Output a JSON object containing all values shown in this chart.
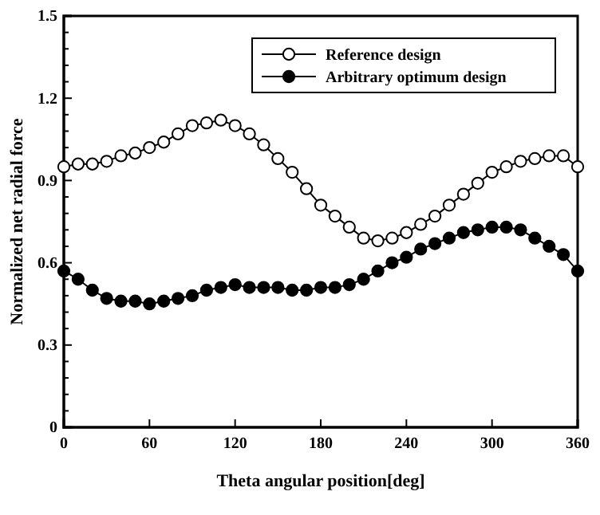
{
  "chart_data": {
    "type": "line",
    "xlabel": "Theta angular position[deg]",
    "ylabel": "Normalized net radial force",
    "x": [
      0,
      10,
      20,
      30,
      40,
      50,
      60,
      70,
      80,
      90,
      100,
      110,
      120,
      130,
      140,
      150,
      160,
      170,
      180,
      190,
      200,
      210,
      220,
      230,
      240,
      250,
      260,
      270,
      280,
      290,
      300,
      310,
      320,
      330,
      340,
      350,
      360
    ],
    "series": [
      {
        "name": "Reference design",
        "color": "#ffffff",
        "marker": "circle",
        "values": [
          0.95,
          0.96,
          0.96,
          0.97,
          0.99,
          1.0,
          1.02,
          1.04,
          1.07,
          1.1,
          1.11,
          1.12,
          1.1,
          1.07,
          1.03,
          0.98,
          0.93,
          0.87,
          0.81,
          0.77,
          0.73,
          0.69,
          0.68,
          0.69,
          0.71,
          0.74,
          0.77,
          0.81,
          0.85,
          0.89,
          0.93,
          0.95,
          0.97,
          0.98,
          0.99,
          0.99,
          0.95
        ]
      },
      {
        "name": "Arbitrary optimum design",
        "color": "#000000",
        "marker": "circle",
        "values": [
          0.57,
          0.54,
          0.5,
          0.47,
          0.46,
          0.46,
          0.45,
          0.46,
          0.47,
          0.48,
          0.5,
          0.51,
          0.52,
          0.51,
          0.51,
          0.51,
          0.5,
          0.5,
          0.51,
          0.51,
          0.52,
          0.54,
          0.57,
          0.6,
          0.62,
          0.65,
          0.67,
          0.69,
          0.71,
          0.72,
          0.73,
          0.73,
          0.72,
          0.69,
          0.66,
          0.63,
          0.57
        ]
      }
    ],
    "xlim": [
      0,
      360
    ],
    "xticks": [
      0,
      60,
      120,
      180,
      240,
      300,
      360
    ],
    "ylim": [
      0,
      1.5
    ],
    "yticks": [
      {
        "value": 0,
        "label": "0"
      },
      {
        "value": 0.3,
        "label": "0.3"
      },
      {
        "value": 0.6,
        "label": "0.6"
      },
      {
        "value": 0.9,
        "label": "0.9"
      },
      {
        "value": 1.2,
        "label": "1.2"
      },
      {
        "value": 1.5,
        "label": "1.5"
      }
    ],
    "grid": false,
    "legend": "top right",
    "line_style": "solid"
  }
}
